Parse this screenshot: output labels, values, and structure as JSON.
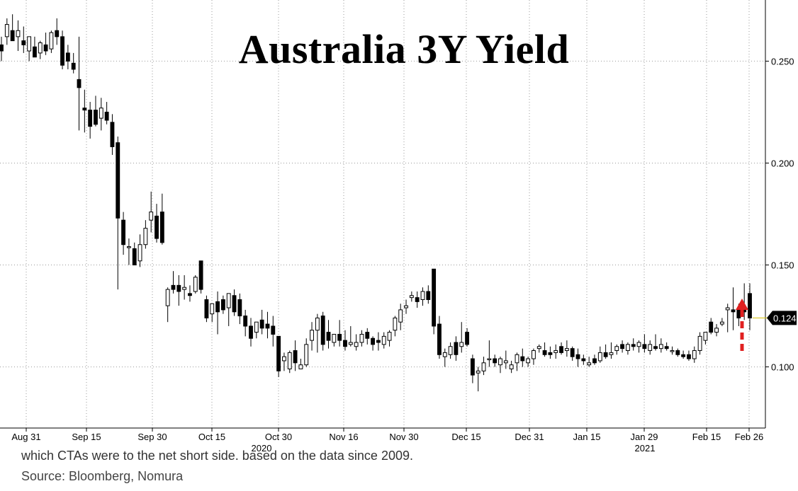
{
  "chart_data": {
    "type": "candlestick",
    "title": "Australia 3Y Yield",
    "ylim": [
      0.07,
      0.28
    ],
    "yticks": [
      0.1,
      0.15,
      0.2,
      0.25
    ],
    "ytick_labels": [
      "0.100",
      "0.150",
      "0.200",
      "0.250"
    ],
    "last_value_label": "0.124",
    "last_value": 0.124,
    "grid": true,
    "x_tick_labels": [
      "Aug 31",
      "Sep 15",
      "Sep 30",
      "Oct 15",
      "Oct 30",
      "Nov 16",
      "Nov 30",
      "Dec 15",
      "Dec 31",
      "Jan 15",
      "Jan 29",
      "Feb 15",
      "Feb 26"
    ],
    "year_labels": [
      "2020",
      "2021"
    ],
    "candles": [
      [
        0.258,
        0.262,
        0.25,
        0.255
      ],
      [
        0.262,
        0.271,
        0.258,
        0.268
      ],
      [
        0.265,
        0.273,
        0.26,
        0.26
      ],
      [
        0.262,
        0.27,
        0.255,
        0.265
      ],
      [
        0.26,
        0.267,
        0.254,
        0.258
      ],
      [
        0.255,
        0.262,
        0.25,
        0.262
      ],
      [
        0.257,
        0.262,
        0.252,
        0.252
      ],
      [
        0.254,
        0.26,
        0.251,
        0.259
      ],
      [
        0.258,
        0.264,
        0.253,
        0.255
      ],
      [
        0.256,
        0.265,
        0.254,
        0.264
      ],
      [
        0.265,
        0.271,
        0.258,
        0.262
      ],
      [
        0.262,
        0.265,
        0.246,
        0.248
      ],
      [
        0.254,
        0.258,
        0.246,
        0.25
      ],
      [
        0.249,
        0.254,
        0.244,
        0.246
      ],
      [
        0.241,
        0.262,
        0.216,
        0.237
      ],
      [
        0.227,
        0.236,
        0.215,
        0.226
      ],
      [
        0.226,
        0.23,
        0.212,
        0.218
      ],
      [
        0.226,
        0.233,
        0.218,
        0.219
      ],
      [
        0.222,
        0.232,
        0.216,
        0.227
      ],
      [
        0.225,
        0.23,
        0.219,
        0.221
      ],
      [
        0.22,
        0.224,
        0.204,
        0.208
      ],
      [
        0.21,
        0.213,
        0.138,
        0.173
      ],
      [
        0.172,
        0.176,
        0.155,
        0.16
      ],
      [
        0.159,
        0.163,
        0.15,
        0.159
      ],
      [
        0.158,
        0.161,
        0.15,
        0.15
      ],
      [
        0.152,
        0.165,
        0.149,
        0.16
      ],
      [
        0.16,
        0.172,
        0.158,
        0.168
      ],
      [
        0.172,
        0.186,
        0.166,
        0.176
      ],
      [
        0.174,
        0.18,
        0.161,
        0.163
      ],
      [
        0.176,
        0.185,
        0.16,
        0.161
      ],
      [
        0.13,
        0.139,
        0.122,
        0.138
      ],
      [
        0.14,
        0.147,
        0.136,
        0.138
      ],
      [
        0.14,
        0.145,
        0.13,
        0.137
      ],
      [
        0.138,
        0.145,
        0.133,
        0.139
      ],
      [
        0.136,
        0.14,
        0.132,
        0.135
      ],
      [
        0.137,
        0.145,
        0.136,
        0.144
      ],
      [
        0.152,
        0.152,
        0.136,
        0.138
      ],
      [
        0.133,
        0.135,
        0.122,
        0.124
      ],
      [
        0.126,
        0.131,
        0.122,
        0.131
      ],
      [
        0.132,
        0.137,
        0.116,
        0.127
      ],
      [
        0.133,
        0.135,
        0.126,
        0.128
      ],
      [
        0.129,
        0.136,
        0.12,
        0.136
      ],
      [
        0.135,
        0.138,
        0.125,
        0.127
      ],
      [
        0.133,
        0.136,
        0.121,
        0.125
      ],
      [
        0.125,
        0.128,
        0.115,
        0.12
      ],
      [
        0.12,
        0.124,
        0.11,
        0.114
      ],
      [
        0.117,
        0.122,
        0.114,
        0.122
      ],
      [
        0.123,
        0.128,
        0.116,
        0.119
      ],
      [
        0.121,
        0.127,
        0.114,
        0.119
      ],
      [
        0.12,
        0.125,
        0.11,
        0.116
      ],
      [
        0.115,
        0.115,
        0.095,
        0.098
      ],
      [
        0.103,
        0.107,
        0.098,
        0.105
      ],
      [
        0.099,
        0.108,
        0.097,
        0.107
      ],
      [
        0.108,
        0.113,
        0.098,
        0.102
      ],
      [
        0.099,
        0.104,
        0.099,
        0.101
      ],
      [
        0.101,
        0.114,
        0.1,
        0.111
      ],
      [
        0.113,
        0.122,
        0.108,
        0.118
      ],
      [
        0.118,
        0.126,
        0.107,
        0.124
      ],
      [
        0.125,
        0.127,
        0.108,
        0.111
      ],
      [
        0.117,
        0.123,
        0.109,
        0.113
      ],
      [
        0.112,
        0.116,
        0.11,
        0.116
      ],
      [
        0.116,
        0.123,
        0.11,
        0.113
      ],
      [
        0.113,
        0.118,
        0.108,
        0.11
      ],
      [
        0.111,
        0.12,
        0.11,
        0.112
      ],
      [
        0.11,
        0.116,
        0.108,
        0.112
      ],
      [
        0.112,
        0.118,
        0.11,
        0.116
      ],
      [
        0.117,
        0.119,
        0.111,
        0.114
      ],
      [
        0.114,
        0.115,
        0.108,
        0.111
      ],
      [
        0.113,
        0.117,
        0.108,
        0.112
      ],
      [
        0.111,
        0.117,
        0.109,
        0.115
      ],
      [
        0.113,
        0.118,
        0.11,
        0.117
      ],
      [
        0.118,
        0.125,
        0.115,
        0.124
      ],
      [
        0.122,
        0.131,
        0.118,
        0.128
      ],
      [
        0.129,
        0.133,
        0.126,
        0.13
      ],
      [
        0.134,
        0.137,
        0.132,
        0.135
      ],
      [
        0.134,
        0.137,
        0.129,
        0.132
      ],
      [
        0.133,
        0.139,
        0.13,
        0.137
      ],
      [
        0.137,
        0.14,
        0.131,
        0.133
      ],
      [
        0.148,
        0.148,
        0.116,
        0.12
      ],
      [
        0.121,
        0.125,
        0.104,
        0.106
      ],
      [
        0.105,
        0.109,
        0.1,
        0.107
      ],
      [
        0.106,
        0.112,
        0.104,
        0.11
      ],
      [
        0.112,
        0.115,
        0.103,
        0.106
      ],
      [
        0.11,
        0.122,
        0.107,
        0.112
      ],
      [
        0.117,
        0.119,
        0.11,
        0.111
      ],
      [
        0.104,
        0.106,
        0.092,
        0.096
      ],
      [
        0.097,
        0.1,
        0.088,
        0.098
      ],
      [
        0.098,
        0.105,
        0.096,
        0.102
      ],
      [
        0.104,
        0.113,
        0.1,
        0.104
      ],
      [
        0.104,
        0.106,
        0.1,
        0.102
      ],
      [
        0.101,
        0.105,
        0.097,
        0.104
      ],
      [
        0.102,
        0.108,
        0.099,
        0.103
      ],
      [
        0.099,
        0.103,
        0.097,
        0.101
      ],
      [
        0.102,
        0.107,
        0.098,
        0.106
      ],
      [
        0.105,
        0.109,
        0.1,
        0.103
      ],
      [
        0.102,
        0.105,
        0.1,
        0.104
      ],
      [
        0.104,
        0.109,
        0.101,
        0.108
      ],
      [
        0.109,
        0.111,
        0.107,
        0.11
      ],
      [
        0.108,
        0.112,
        0.105,
        0.106
      ],
      [
        0.107,
        0.11,
        0.104,
        0.106
      ],
      [
        0.107,
        0.111,
        0.104,
        0.108
      ],
      [
        0.11,
        0.112,
        0.106,
        0.107
      ],
      [
        0.108,
        0.113,
        0.105,
        0.109
      ],
      [
        0.109,
        0.11,
        0.103,
        0.105
      ],
      [
        0.106,
        0.109,
        0.1,
        0.104
      ],
      [
        0.104,
        0.106,
        0.101,
        0.103
      ],
      [
        0.101,
        0.105,
        0.1,
        0.102
      ],
      [
        0.104,
        0.106,
        0.101,
        0.102
      ],
      [
        0.103,
        0.11,
        0.102,
        0.107
      ],
      [
        0.107,
        0.111,
        0.104,
        0.105
      ],
      [
        0.106,
        0.112,
        0.104,
        0.107
      ],
      [
        0.108,
        0.111,
        0.106,
        0.11
      ],
      [
        0.111,
        0.113,
        0.107,
        0.109
      ],
      [
        0.108,
        0.112,
        0.106,
        0.111
      ],
      [
        0.111,
        0.114,
        0.108,
        0.11
      ],
      [
        0.11,
        0.113,
        0.107,
        0.112
      ],
      [
        0.111,
        0.116,
        0.107,
        0.109
      ],
      [
        0.108,
        0.113,
        0.106,
        0.111
      ],
      [
        0.11,
        0.116,
        0.108,
        0.109
      ],
      [
        0.109,
        0.114,
        0.107,
        0.111
      ],
      [
        0.11,
        0.112,
        0.108,
        0.109
      ],
      [
        0.108,
        0.11,
        0.106,
        0.108
      ],
      [
        0.108,
        0.109,
        0.105,
        0.106
      ],
      [
        0.106,
        0.108,
        0.104,
        0.105
      ],
      [
        0.106,
        0.108,
        0.103,
        0.104
      ],
      [
        0.104,
        0.11,
        0.102,
        0.108
      ],
      [
        0.108,
        0.117,
        0.106,
        0.115
      ],
      [
        0.113,
        0.117,
        0.111,
        0.117
      ],
      [
        0.122,
        0.124,
        0.116,
        0.117
      ],
      [
        0.117,
        0.121,
        0.115,
        0.119
      ],
      [
        0.121,
        0.124,
        0.12,
        0.122
      ],
      [
        0.128,
        0.131,
        0.117,
        0.129
      ],
      [
        0.128,
        0.139,
        0.118,
        0.127
      ],
      [
        0.128,
        0.131,
        0.12,
        0.124
      ],
      [
        0.128,
        0.141,
        0.123,
        0.127
      ],
      [
        0.136,
        0.141,
        0.118,
        0.124
      ]
    ]
  },
  "footer": {
    "partial_text": "which CTAs were to the net short side, based on the data since 2009.",
    "source": "Source: Bloomberg, Nomura"
  },
  "colors": {
    "up_fill": "#ffffff",
    "down_fill": "#000000",
    "grid": "#9a9a9a",
    "arrow": "#e02020",
    "last_value_badge": "#000000"
  }
}
